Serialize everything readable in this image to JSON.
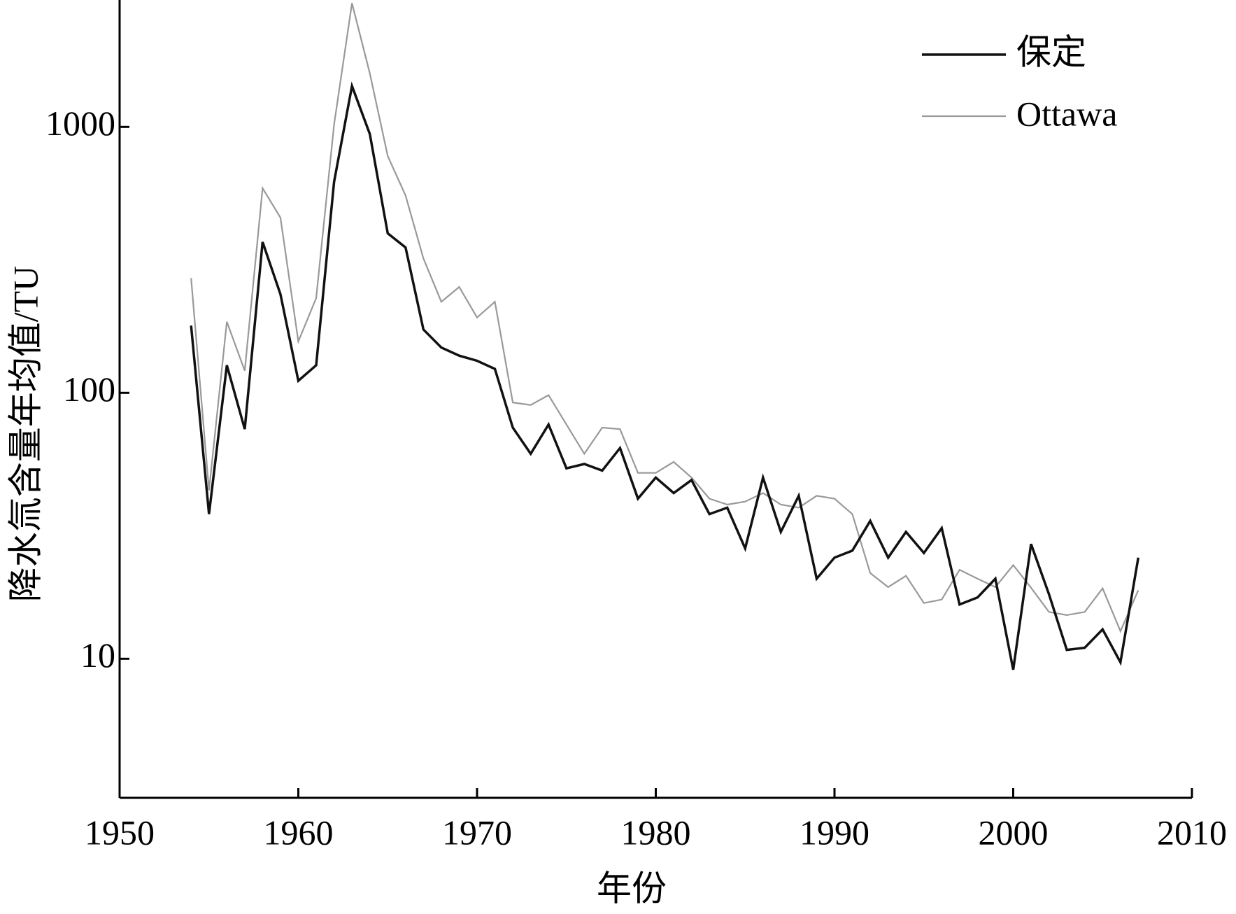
{
  "chart_data": {
    "type": "line",
    "x_label": "年份",
    "y_label": "降水氚含量年均值/TU",
    "x": [
      1954,
      1955,
      1956,
      1957,
      1958,
      1959,
      1960,
      1961,
      1962,
      1963,
      1964,
      1965,
      1966,
      1967,
      1968,
      1969,
      1970,
      1971,
      1972,
      1973,
      1974,
      1975,
      1976,
      1977,
      1978,
      1979,
      1980,
      1981,
      1982,
      1983,
      1984,
      1985,
      1986,
      1987,
      1988,
      1989,
      1990,
      1991,
      1992,
      1993,
      1994,
      1995,
      1996,
      1997,
      1998,
      1999,
      2000,
      2001,
      2002,
      2003,
      2004,
      2005,
      2006,
      2007
    ],
    "series": [
      {
        "name": "保定",
        "color": "#111111",
        "width": 3.5,
        "values": [
          179,
          35,
          127,
          73,
          369,
          235,
          111,
          127,
          621,
          1425,
          940,
          398,
          352,
          173,
          148,
          138,
          132,
          123,
          74,
          59,
          76,
          52,
          54,
          51,
          62,
          40,
          48,
          42,
          47,
          35,
          37,
          26,
          48,
          30,
          41,
          20,
          24,
          25.5,
          33,
          24,
          30,
          25,
          31,
          16,
          17,
          20,
          9.1,
          27,
          17.5,
          10.8,
          11,
          12.9,
          9.7,
          24
        ]
      },
      {
        "name": "Ottawa",
        "color": "#999999",
        "width": 2.2,
        "values": [
          270,
          43,
          185,
          121,
          588,
          456,
          156,
          227,
          1020,
          2920,
          1590,
          777,
          552,
          320,
          220,
          250,
          192,
          220,
          92,
          90,
          98,
          76,
          59,
          74,
          73,
          50,
          50,
          55,
          48,
          40,
          38,
          39,
          42,
          38,
          37,
          41,
          40,
          35,
          21,
          18.6,
          20.5,
          16.2,
          16.7,
          21.6,
          20,
          18.6,
          22.5,
          18.5,
          15,
          14.6,
          15,
          18.4,
          12.7,
          18.1
        ]
      }
    ],
    "xlim": [
      1950,
      2010
    ],
    "xticks": [
      1950,
      1960,
      1970,
      1980,
      1990,
      2000,
      2010
    ],
    "ylim": [
      3,
      3000
    ],
    "yticks": [
      10,
      100,
      1000
    ],
    "log_y": true,
    "legend": "upper right"
  }
}
